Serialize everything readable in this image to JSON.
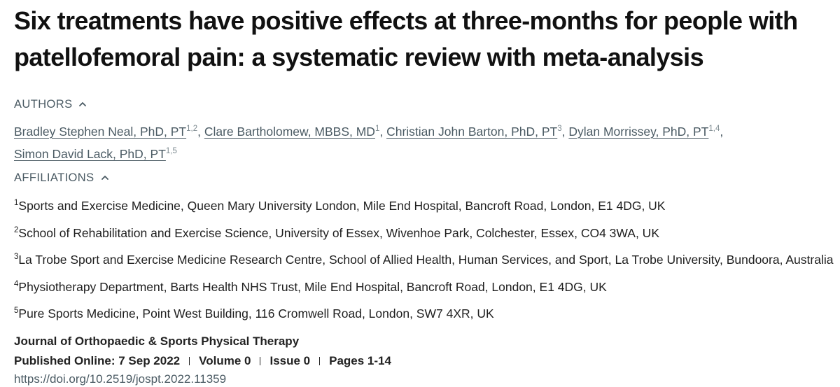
{
  "title": "Six treatments have positive effects at three-months for people with patellofemoral pain: a systematic review with meta-analysis",
  "authors_heading": "AUTHORS",
  "authors": [
    {
      "name": "Bradley Stephen Neal, PhD, PT",
      "sup": "1,2"
    },
    {
      "name": "Clare Bartholomew, MBBS, MD",
      "sup": "1"
    },
    {
      "name": "Christian John Barton, PhD, PT",
      "sup": "3"
    },
    {
      "name": "Dylan Morrissey, PhD, PT",
      "sup": "1,4"
    },
    {
      "name": "Simon David Lack, PhD, PT",
      "sup": "1,5"
    }
  ],
  "affiliations_heading": "AFFILIATIONS",
  "affiliations": [
    {
      "num": "1",
      "text": "Sports and Exercise Medicine, Queen Mary University London, Mile End Hospital, Bancroft Road, London, E1 4DG, UK"
    },
    {
      "num": "2",
      "text": "School of Rehabilitation and Exercise Science, University of Essex, Wivenhoe Park, Colchester, Essex, CO4 3WA, UK"
    },
    {
      "num": "3",
      "text": "La Trobe Sport and Exercise Medicine Research Centre, School of Allied Health, Human Services, and Sport, La Trobe University, Bundoora, Australia"
    },
    {
      "num": "4",
      "text": "Physiotherapy Department, Barts Health NHS Trust, Mile End Hospital, Bancroft Road, London, E1 4DG, UK"
    },
    {
      "num": "5",
      "text": "Pure Sports Medicine, Point West Building, 116 Cromwell Road, London, SW7 4XR, UK"
    }
  ],
  "journal": "Journal of Orthopaedic & Sports Physical Therapy",
  "published": "Published Online: 7 Sep 2022",
  "volume": "Volume 0",
  "issue": "Issue 0",
  "pages": "Pages 1-14",
  "doi": "https://doi.org/10.2519/jospt.2022.11359",
  "colors": {
    "link": "#4a5a63",
    "text": "#1a1a1a"
  },
  "icons": {
    "section_toggle": "chevron-up-icon"
  }
}
